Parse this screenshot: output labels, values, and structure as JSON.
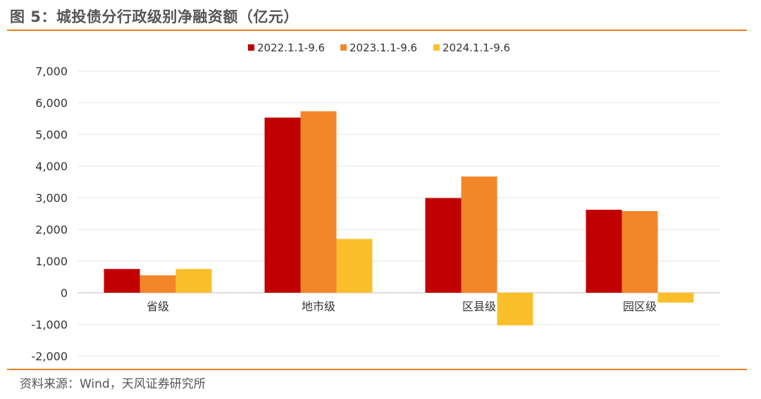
{
  "header": {
    "title": "图 5：城投债分行政级别净融资额（亿元）"
  },
  "footer": {
    "source": "资料来源：Wind，天风证券研究所"
  },
  "chart_data": {
    "type": "bar",
    "categories": [
      "省级",
      "地市级",
      "区县级",
      "园区级"
    ],
    "series": [
      {
        "name": "2022.1.1-9.6",
        "color": "#C00000",
        "values": [
          750,
          5530,
          2990,
          2620
        ]
      },
      {
        "name": "2023.1.1-9.6",
        "color": "#F4862A",
        "values": [
          550,
          5730,
          3670,
          2580
        ]
      },
      {
        "name": "2024.1.1-9.6",
        "color": "#FBBF2C",
        "values": [
          750,
          1700,
          -1030,
          -310
        ]
      }
    ],
    "yticks": [
      "7,000",
      "6,000",
      "5,000",
      "4,000",
      "3,000",
      "2,000",
      "1,000",
      "0",
      "-1,000",
      "-2,000"
    ],
    "ylim": [
      -2000,
      7000
    ],
    "grid": true,
    "legend_position": "top-center"
  }
}
